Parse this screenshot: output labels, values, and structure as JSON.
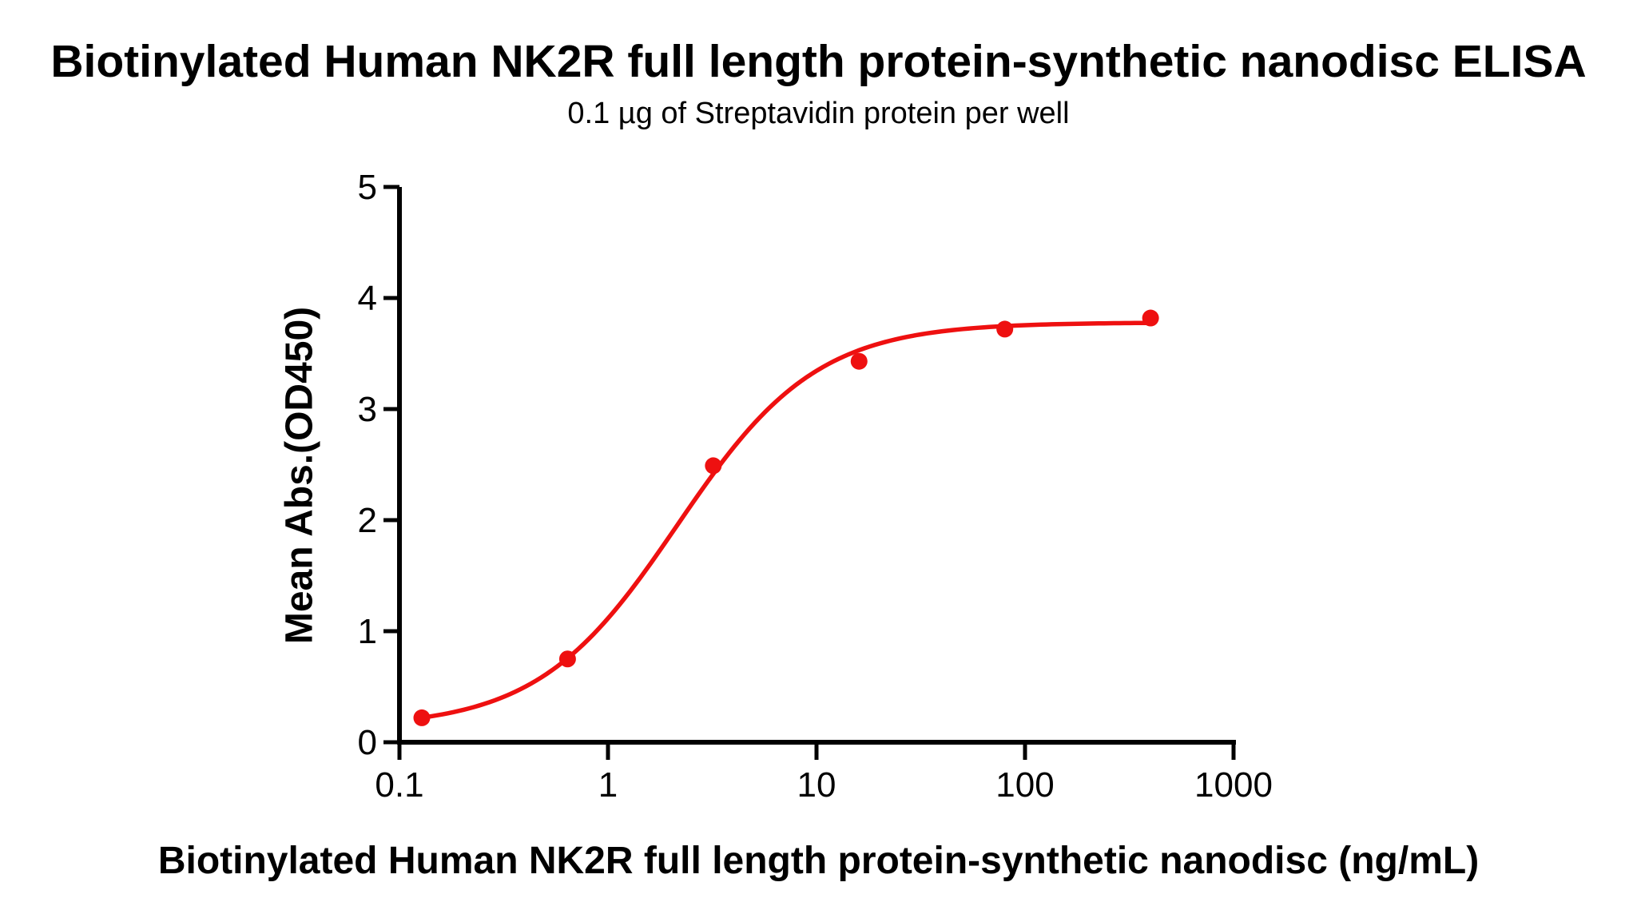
{
  "chart_data": {
    "type": "scatter",
    "title": "Biotinylated Human NK2R full length protein-synthetic nanodisc ELISA",
    "subtitle": "0.1 µg of Streptavidin protein per well",
    "xlabel": "Biotinylated Human NK2R full length protein-synthetic nanodisc (ng/mL)",
    "ylabel": "Mean Abs.(OD450)",
    "x_scale": "log10",
    "xlim": [
      0.1,
      1000
    ],
    "ylim": [
      0,
      5
    ],
    "xticks": [
      0.1,
      1,
      10,
      100,
      1000
    ],
    "xtick_labels": [
      "0.1",
      "1",
      "10",
      "100",
      "1000"
    ],
    "yticks": [
      0,
      1,
      2,
      3,
      4,
      5
    ],
    "ytick_labels": [
      "0",
      "1",
      "2",
      "3",
      "4",
      "5"
    ],
    "grid": false,
    "legend": false,
    "series": [
      {
        "name": "Biotinylated Human NK2R full length protein-synthetic nanodisc",
        "marker": "circle",
        "color": "#ee1010",
        "points": [
          {
            "x": 0.128,
            "y": 0.22
          },
          {
            "x": 0.64,
            "y": 0.75
          },
          {
            "x": 3.2,
            "y": 2.49
          },
          {
            "x": 16,
            "y": 3.43
          },
          {
            "x": 80,
            "y": 3.72
          },
          {
            "x": 400,
            "y": 3.82
          }
        ]
      }
    ],
    "fit_curve": {
      "model": "4PL",
      "bottom": 0.13,
      "top": 3.78,
      "ec50_ng_ml": 2.15,
      "hill": 1.3,
      "x_range": [
        0.128,
        400
      ],
      "color": "#ee1010"
    },
    "axis_color": "#000000",
    "text_color": "#000000",
    "background": "#ffffff"
  }
}
